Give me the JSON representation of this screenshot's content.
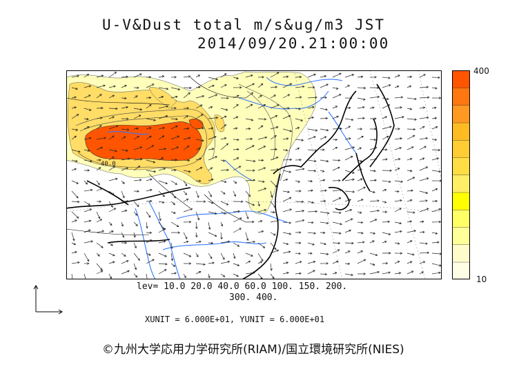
{
  "title": "U-V&Dust total m/s&ug/m3 JST",
  "datetime": "2014/09/20.21:00:00",
  "colorbar": {
    "max_label": "400",
    "min_label": "10",
    "colors": [
      "#ffffe6",
      "#fffccc",
      "#ffff99",
      "#ffff66",
      "#ffff00",
      "#ffee66",
      "#ffdd44",
      "#ffcc33",
      "#ffbb22",
      "#ff9922",
      "#ff7711",
      "#ff5500"
    ]
  },
  "contour_levels_line1": "lev= 10.0 20.0 40.0 60.0 100. 150. 200.",
  "contour_levels_line2": "300. 400.",
  "contour_label": "40.0",
  "units_text": "XUNIT = 6.000E+01, YUNIT = 6.000E+01",
  "credit": "©九州大学応用力学研究所(RIAM)/国立環境研究所(NIES)",
  "colors": {
    "high_dust": "#ff5500",
    "mid_dust": "#ffcc44",
    "low_dust": "#ffffaa",
    "river": "#3377ff",
    "coast": "#000000"
  }
}
